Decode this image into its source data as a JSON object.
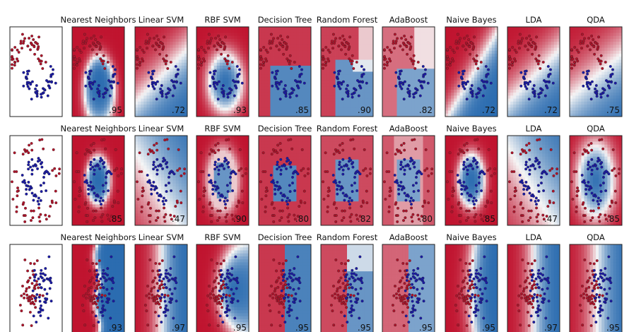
{
  "chart_data": {
    "type": "scatter",
    "classifiers": [
      "Nearest Neighbors",
      "Linear SVM",
      "RBF SVM",
      "Decision Tree",
      "Random Forest",
      "AdaBoost",
      "Naive Bayes",
      "LDA",
      "QDA"
    ],
    "datasets": [
      {
        "name": "",
        "kind": "moons",
        "scores": [
          ".95",
          ".72",
          ".93",
          ".85",
          ".90",
          ".82",
          ".72",
          ".72",
          ".75"
        ]
      },
      {
        "name": "",
        "kind": "circles",
        "scores": [
          ".85",
          ".47",
          ".90",
          ".80",
          ".82",
          ".80",
          ".85",
          ".47",
          ".85"
        ]
      },
      {
        "name": "",
        "kind": "linear",
        "scores": [
          ".93",
          ".97",
          ".95",
          ".95",
          ".95",
          ".95",
          ".95",
          ".97",
          ".95"
        ]
      }
    ],
    "colors": {
      "class_0": "#b0132a",
      "class_1": "#1a1aa6",
      "region_red": "#c0142f",
      "region_blue": "#2b6cb0",
      "light_red": "#f4b7a4",
      "light_blue": "#b9d7ea"
    },
    "axes_ticks": false,
    "grid": false,
    "legend": "none"
  }
}
